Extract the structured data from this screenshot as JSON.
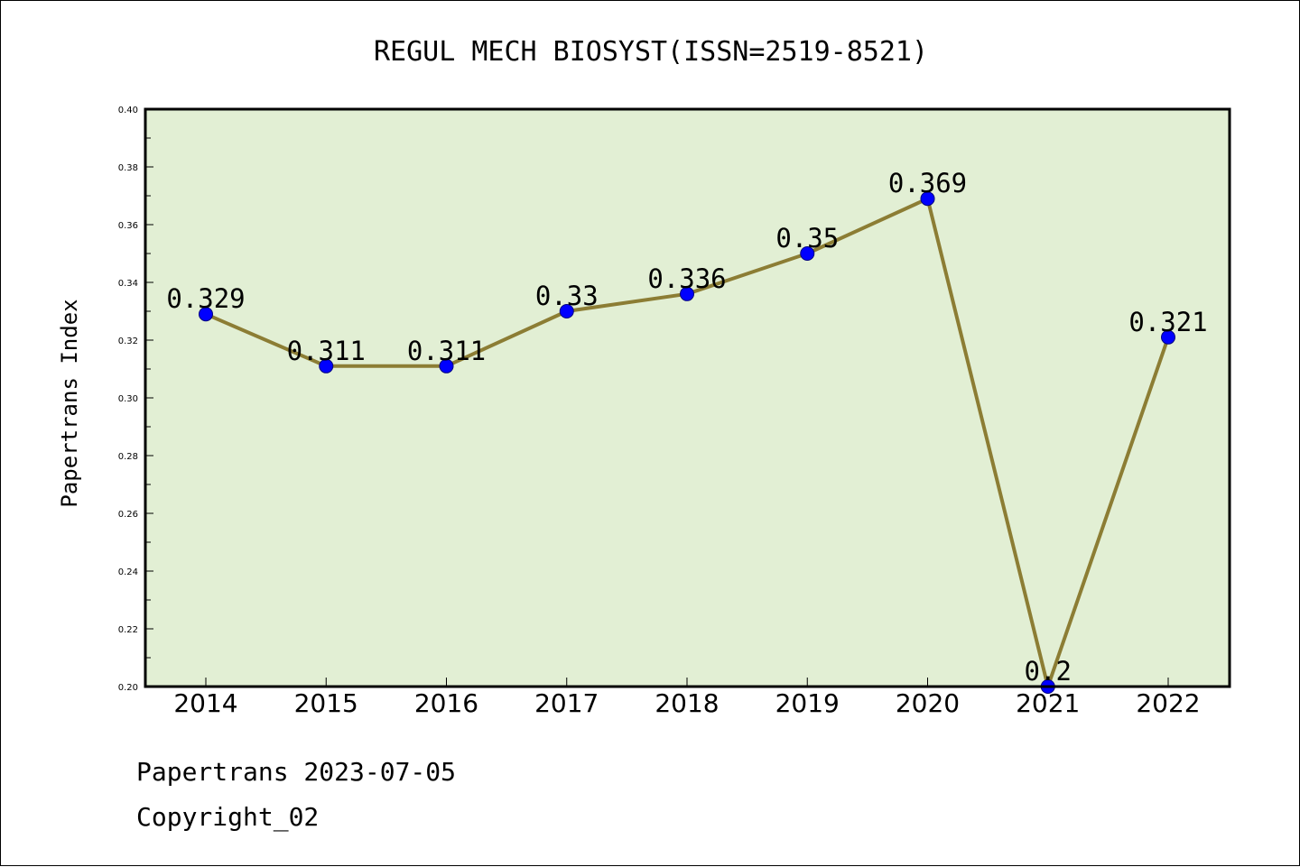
{
  "chart_data": {
    "type": "line",
    "title": "REGUL MECH BIOSYST(ISSN=2519-8521)",
    "ylabel": "Papertrans Index",
    "xlabel": "",
    "categories": [
      "2014",
      "2015",
      "2016",
      "2017",
      "2018",
      "2019",
      "2020",
      "2021",
      "2022"
    ],
    "series": [
      {
        "values": [
          0.329,
          0.311,
          0.311,
          0.33,
          0.336,
          0.35,
          0.369,
          0.2,
          0.321
        ]
      }
    ],
    "data_labels": [
      "0.329",
      "0.311",
      "0.311",
      "0.33",
      "0.336",
      "0.35",
      "0.369",
      "0.2",
      "0.321"
    ],
    "ylim": [
      0.2,
      0.4
    ],
    "yticks": [
      "0.20",
      "0.22",
      "0.24",
      "0.26",
      "0.28",
      "0.30",
      "0.32",
      "0.34",
      "0.36",
      "0.38",
      "0.40"
    ],
    "grid": false,
    "legend": "none",
    "colors": {
      "plot_background": "#e2efd4",
      "line": "#8c7d34",
      "marker": "#0000ff"
    }
  },
  "footer": {
    "line1": "Papertrans 2023-07-05",
    "line2": "Copyright_02"
  }
}
